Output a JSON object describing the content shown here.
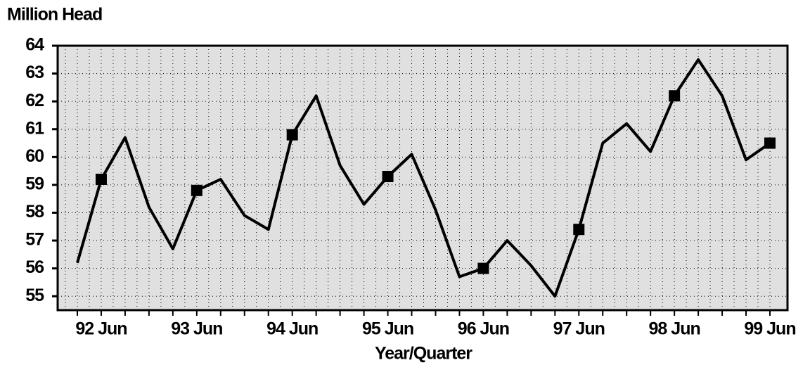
{
  "chart_data": {
    "type": "line",
    "title": "Million Head",
    "x_label": "Year/Quarter",
    "categories": [
      null,
      "92 Jun",
      null,
      null,
      null,
      "93 Jun",
      null,
      null,
      null,
      "94 Jun",
      null,
      null,
      null,
      "95 Jun",
      null,
      null,
      null,
      "96 Jun",
      null,
      null,
      null,
      "97 Jun",
      null,
      null,
      null,
      "98 Jun",
      null,
      null,
      null,
      "99 Jun"
    ],
    "values": [
      56.2,
      59.2,
      60.7,
      58.2,
      56.7,
      58.8,
      59.2,
      57.9,
      57.4,
      60.8,
      62.2,
      59.7,
      58.3,
      59.3,
      60.1,
      58.1,
      55.7,
      56.0,
      57.0,
      56.1,
      55.0,
      57.4,
      60.5,
      61.2,
      60.2,
      62.2,
      63.5,
      62.2,
      59.9,
      60.5
    ],
    "color": "#000000",
    "ylim": [
      54.5,
      64
    ],
    "yticks": [
      55,
      56,
      57,
      58,
      59,
      60,
      61,
      62,
      63,
      64
    ],
    "grid": true
  }
}
